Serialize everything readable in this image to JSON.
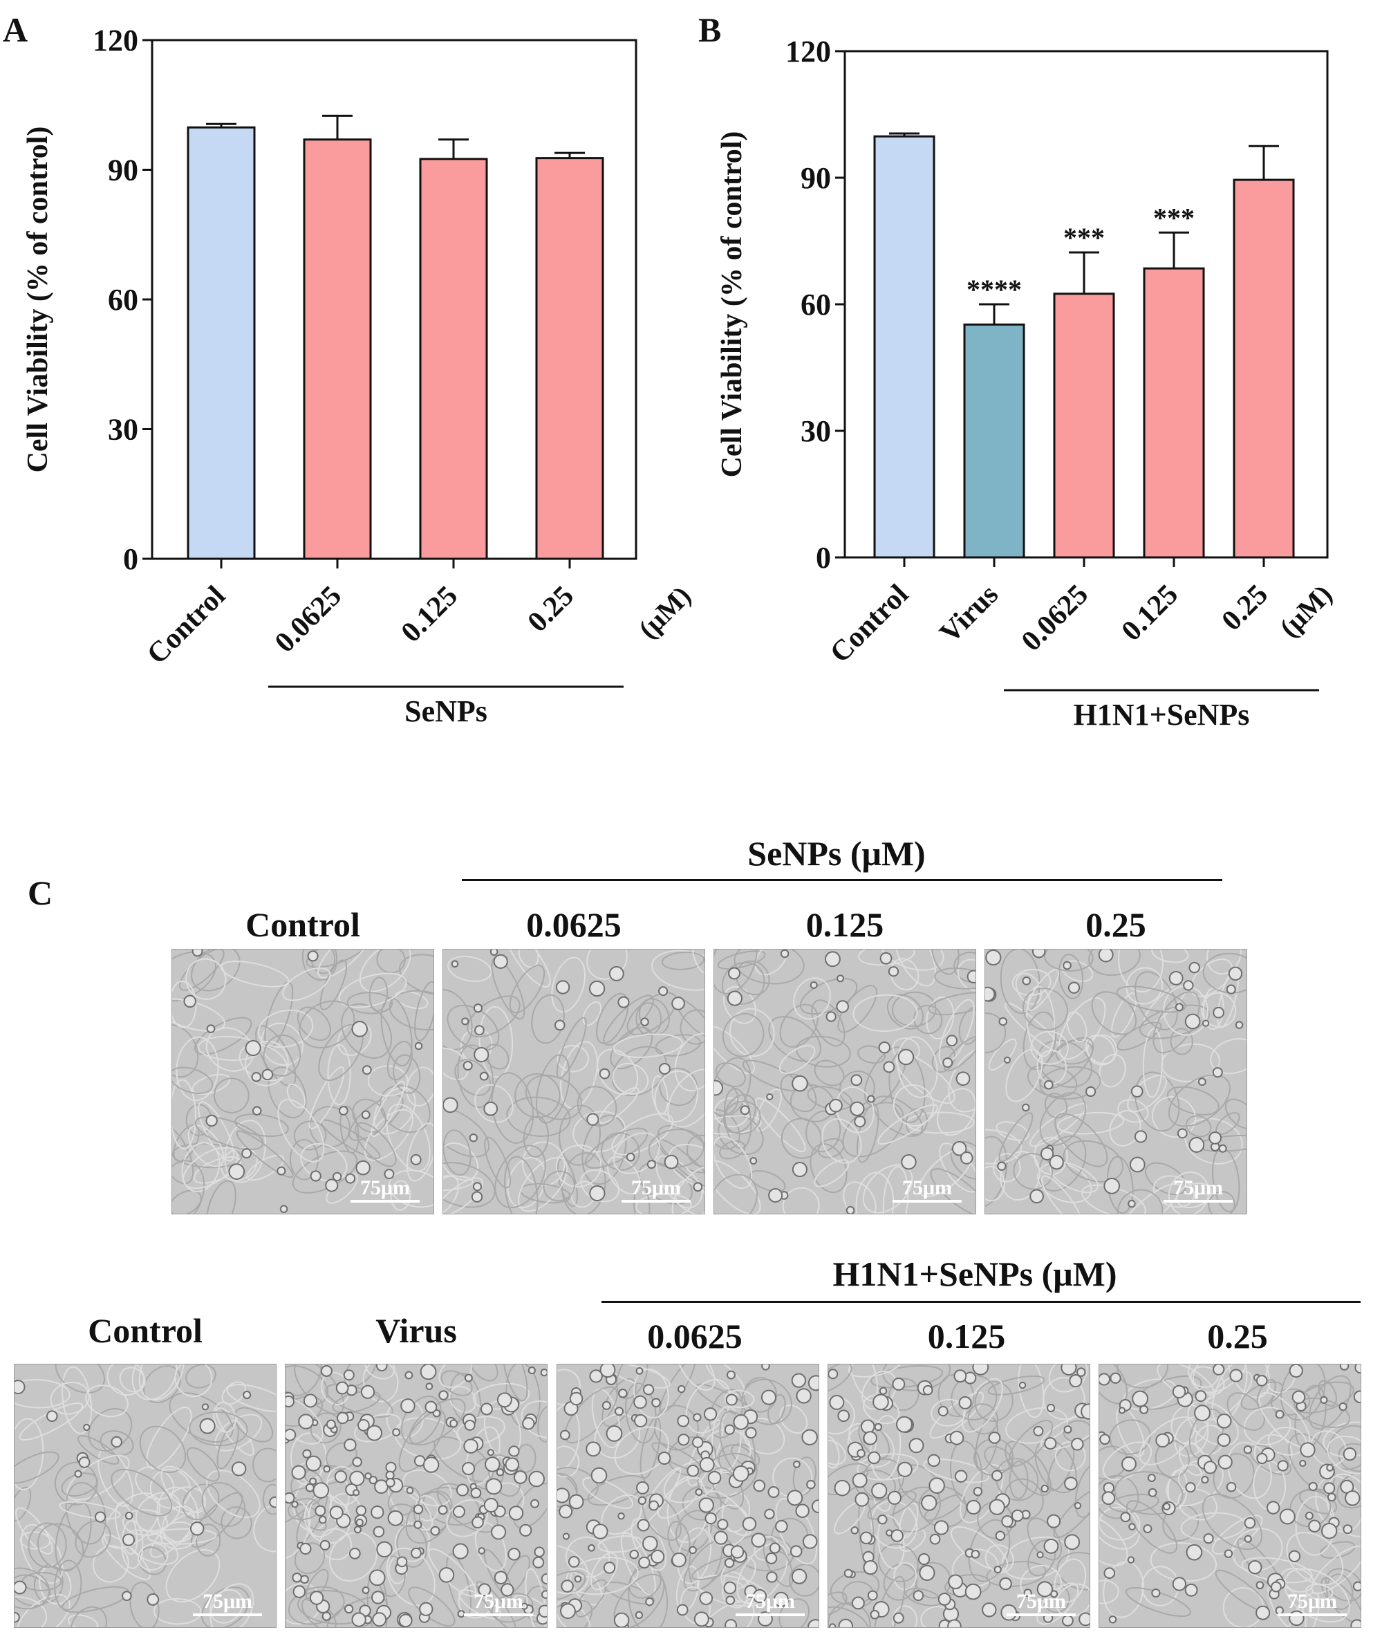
{
  "panel_a": {
    "letter": "A",
    "chart_data": {
      "type": "bar",
      "categories": [
        "Control",
        "0.0625",
        "0.125",
        "0.25"
      ],
      "values": [
        99.8,
        97.0,
        92.5,
        92.7
      ],
      "errors": [
        0.8,
        5.5,
        4.5,
        1.2
      ],
      "colors": [
        "#c5d9f4",
        "#fa9c9d",
        "#fa9c9d",
        "#fa9c9d"
      ],
      "ylabel": "Cell Viability (% of control)",
      "yticks": [
        0,
        30,
        60,
        90,
        120
      ],
      "ylim": [
        0,
        120
      ],
      "unit": "(μM)",
      "group_label": "SeNPs",
      "significance": [
        "",
        "",
        "",
        ""
      ]
    }
  },
  "panel_b": {
    "letter": "B",
    "chart_data": {
      "type": "bar",
      "categories": [
        "Control",
        "Virus",
        "0.0625",
        "0.125",
        "0.25"
      ],
      "values": [
        99.8,
        55.2,
        62.5,
        68.5,
        89.5
      ],
      "errors": [
        0.7,
        4.8,
        9.8,
        8.5,
        8.0
      ],
      "colors": [
        "#c5d9f4",
        "#7fb4c7",
        "#fa9c9d",
        "#fa9c9d",
        "#fa9c9d"
      ],
      "ylabel": "Cell Viability (% of control)",
      "yticks": [
        0,
        30,
        60,
        90,
        120
      ],
      "ylim": [
        0,
        120
      ],
      "unit": "(μM)",
      "group_label": "H1N1+SeNPs",
      "significance": [
        "",
        "****",
        "***",
        "***",
        ""
      ]
    }
  },
  "panel_c": {
    "letter": "C",
    "row1": {
      "header": "SeNPs  (μM)",
      "labels": [
        "Control",
        "0.0625",
        "0.125",
        "0.25"
      ],
      "scale_bar": "75μm"
    },
    "row2": {
      "header": "H1N1+SeNPs  (μM)",
      "labels": [
        "Control",
        "Virus",
        "0.0625",
        "0.125",
        "0.25"
      ],
      "scale_bar": "75μm"
    }
  }
}
